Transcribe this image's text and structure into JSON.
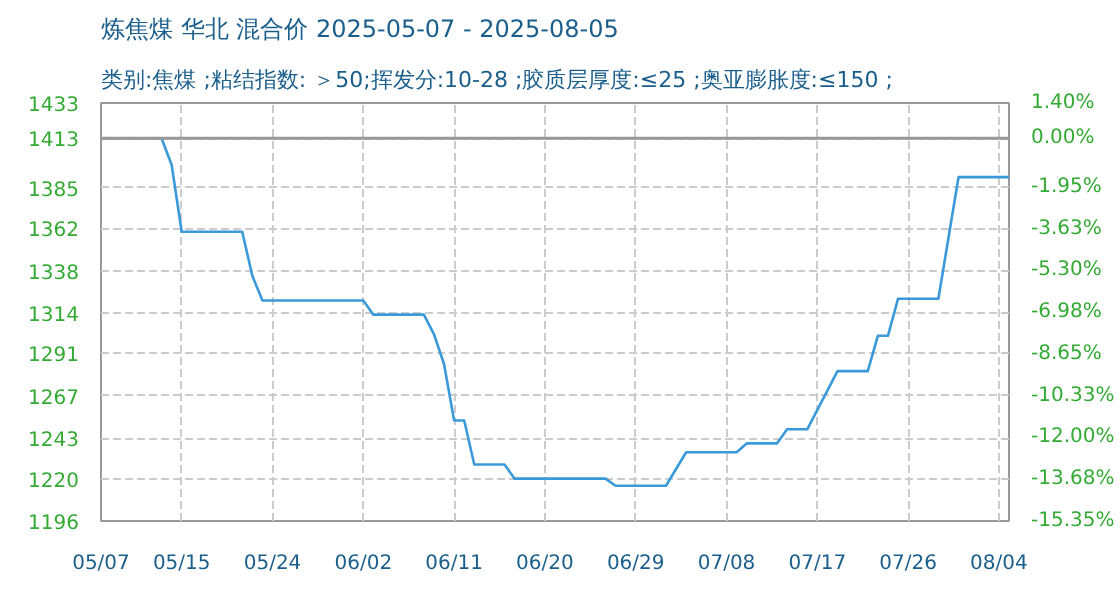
{
  "chart_data": {
    "type": "line",
    "title": "炼焦煤 华北 混合价 2025-05-07 - 2025-08-05",
    "subtitle": "类别:焦煤 ;粘结指数: ＞50;挥发分:10-28 ;胶质层厚度:≤25 ;奥亚膨胀度:≤150 ;",
    "x": [
      "2025-05-07",
      "2025-05-13",
      "2025-05-14",
      "2025-05-15",
      "2025-05-21",
      "2025-05-22",
      "2025-05-23",
      "2025-06-02",
      "2025-06-03",
      "2025-06-08",
      "2025-06-09",
      "2025-06-10",
      "2025-06-11",
      "2025-06-12",
      "2025-06-13",
      "2025-06-16",
      "2025-06-17",
      "2025-06-26",
      "2025-06-27",
      "2025-07-02",
      "2025-07-04",
      "2025-07-09",
      "2025-07-10",
      "2025-07-13",
      "2025-07-14",
      "2025-07-16",
      "2025-07-19",
      "2025-07-22",
      "2025-07-23",
      "2025-07-24",
      "2025-07-25",
      "2025-07-29",
      "2025-07-31",
      "2025-08-05"
    ],
    "series": [
      {
        "color": "#3a9ad9",
        "values": [
          1413,
          1413,
          1398,
          1360,
          1360,
          1335,
          1321,
          1321,
          1313,
          1313,
          1302,
          1285,
          1253,
          1253,
          1228,
          1228,
          1220,
          1220,
          1216,
          1216,
          1235,
          1235,
          1240,
          1240,
          1248,
          1248,
          1281,
          1281,
          1301,
          1301,
          1322,
          1322,
          1391,
          1391
        ]
      }
    ],
    "xlim": [
      "2025-05-07",
      "2025-08-05"
    ],
    "xticks": [
      {
        "value": "2025-05-07",
        "label": "05/07"
      },
      {
        "value": "2025-05-15",
        "label": "05/15"
      },
      {
        "value": "2025-05-24",
        "label": "05/24"
      },
      {
        "value": "2025-06-02",
        "label": "06/02"
      },
      {
        "value": "2025-06-11",
        "label": "06/11"
      },
      {
        "value": "2025-06-20",
        "label": "06/20"
      },
      {
        "value": "2025-06-29",
        "label": "06/29"
      },
      {
        "value": "2025-07-08",
        "label": "07/08"
      },
      {
        "value": "2025-07-17",
        "label": "07/17"
      },
      {
        "value": "2025-07-26",
        "label": "07/26"
      },
      {
        "value": "2025-08-04",
        "label": "08/04"
      }
    ],
    "ylim": [
      1196,
      1433
    ],
    "yticks": [
      1196,
      1220,
      1243,
      1267,
      1291,
      1314,
      1338,
      1362,
      1385,
      1413,
      1433
    ],
    "y2lim": [
      -15.35,
      1.4
    ],
    "y2ticks": [
      {
        "value": -15.35,
        "label": "-15.35%"
      },
      {
        "value": -13.68,
        "label": "-13.68%"
      },
      {
        "value": -12.0,
        "label": "-12.00%"
      },
      {
        "value": -10.33,
        "label": "-10.33%"
      },
      {
        "value": -8.65,
        "label": "-8.65%"
      },
      {
        "value": -6.98,
        "label": "-6.98%"
      },
      {
        "value": -5.3,
        "label": "-5.30%"
      },
      {
        "value": -3.63,
        "label": "-3.63%"
      },
      {
        "value": -1.95,
        "label": "-1.95%"
      },
      {
        "value": 0,
        "label": "0.00%"
      },
      {
        "value": 1.4,
        "label": "1.40%"
      }
    ],
    "ref_lines": [
      {
        "axis": "y",
        "value": 1413,
        "color": "#999999",
        "line_style": "solid"
      }
    ],
    "grid": true,
    "line_style": "solid"
  }
}
